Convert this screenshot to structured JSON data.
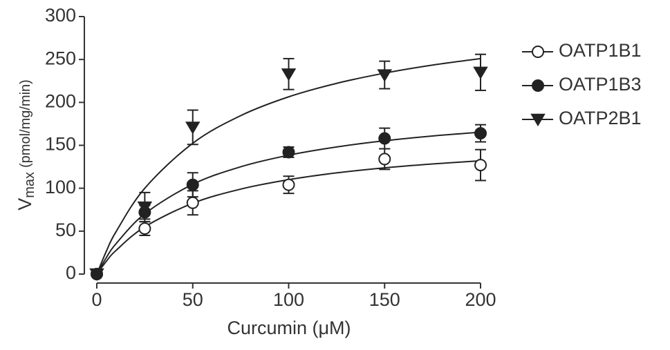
{
  "chart_data": {
    "type": "scatter",
    "xlabel": "Curcumin (μM)",
    "ylabel": {
      "symbol": "V",
      "subscript": "max",
      "unit": "(pmol/mg/min)"
    },
    "x": [
      0,
      25,
      50,
      100,
      150,
      200
    ],
    "xlim": [
      0,
      200
    ],
    "xticks": [
      0,
      50,
      100,
      150,
      200
    ],
    "ylim": [
      0,
      300
    ],
    "yticks": [
      0,
      50,
      100,
      150,
      200,
      250,
      300
    ],
    "fit_x": [
      0,
      5,
      10,
      25,
      50,
      75,
      100,
      125,
      150,
      175,
      200
    ],
    "legend": "right",
    "series": [
      {
        "name": "OATP1B1",
        "color": "#222222",
        "marker": "open-circle",
        "values": [
          0,
          53,
          83,
          104,
          134,
          127
        ],
        "errors": [
          0,
          8,
          14,
          10,
          12,
          18
        ],
        "fit": [
          0,
          15,
          27.5,
          55,
          82.5,
          99,
          110,
          117.9,
          123.8,
          128.3,
          132
        ]
      },
      {
        "name": "OATP1B3",
        "color": "#222222",
        "marker": "filled-circle",
        "values": [
          0,
          72,
          104,
          142,
          158,
          164
        ],
        "errors": [
          0,
          8,
          14,
          6,
          12,
          10
        ],
        "fit": [
          0,
          19.3,
          35.3,
          70.2,
          104.6,
          125,
          138.5,
          148.1,
          155.3,
          160.9,
          165.3
        ]
      },
      {
        "name": "OATP2B1",
        "color": "#222222",
        "marker": "down-triangle",
        "values": [
          0,
          78,
          171,
          233,
          232,
          235
        ],
        "errors": [
          0,
          17,
          20,
          18,
          16,
          21
        ],
        "fit": [
          0,
          26.7,
          49.2,
          100,
          152.4,
          184.6,
          206.5,
          222.2,
          234.1,
          243.5,
          251
        ]
      }
    ]
  }
}
